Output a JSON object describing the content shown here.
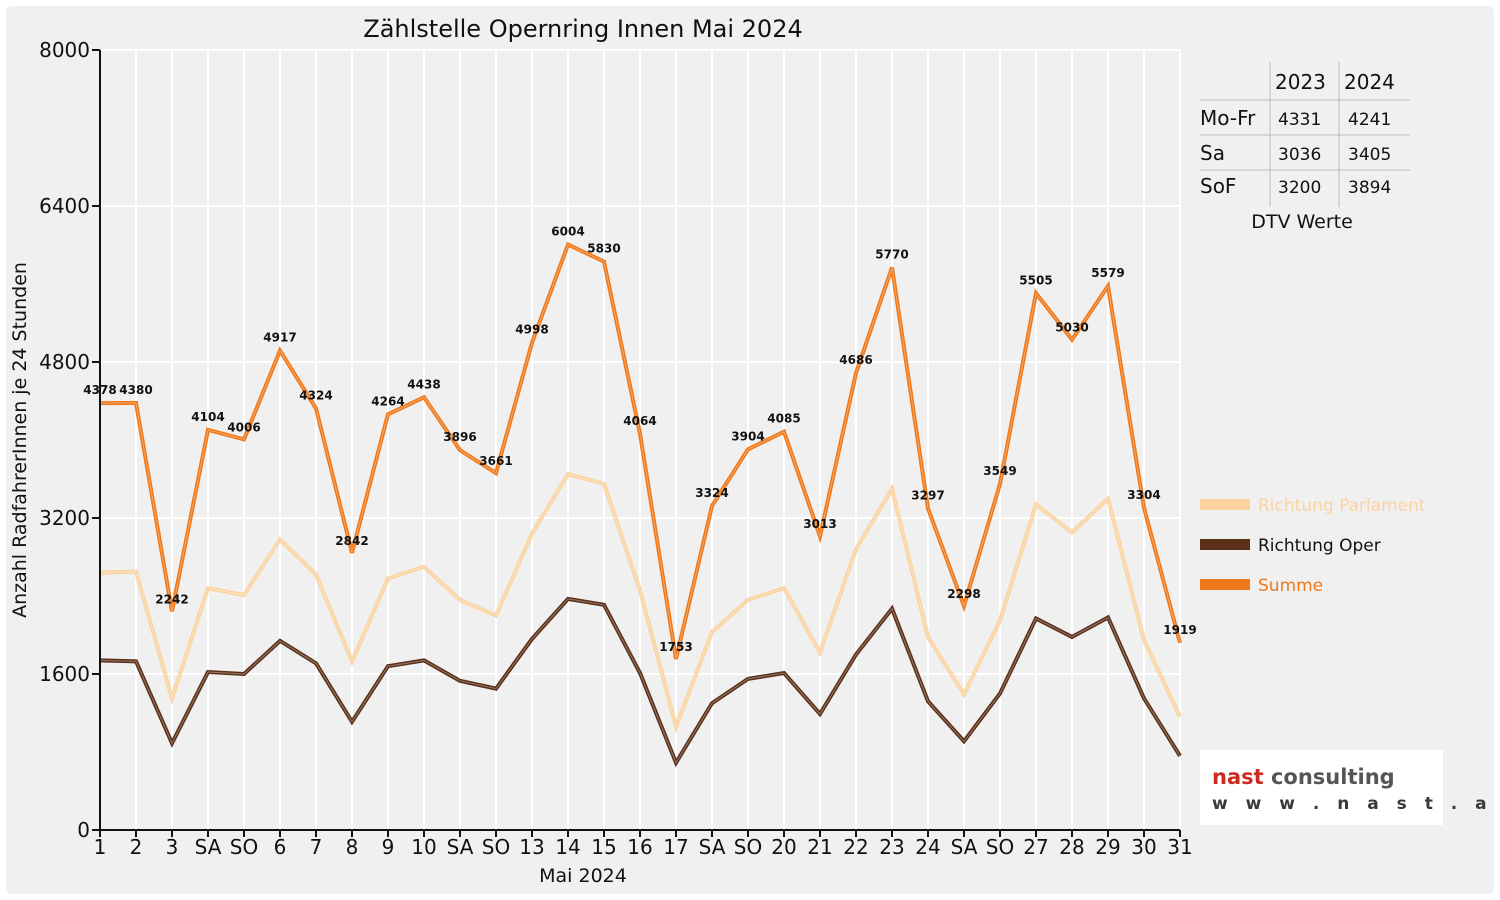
{
  "chart_data": {
    "type": "line",
    "title": "Zählstelle Opernring Innen Mai 2024",
    "xlabel": "Mai 2024",
    "ylabel": "Anzahl RadfahrerInnen je 24 Stunden",
    "ylim": [
      0,
      8000
    ],
    "yticks": [
      0,
      1600,
      3200,
      4800,
      6400,
      8000
    ],
    "categories": [
      "1",
      "2",
      "3",
      "SA",
      "SO",
      "6",
      "7",
      "8",
      "9",
      "10",
      "SA",
      "SO",
      "13",
      "14",
      "15",
      "16",
      "17",
      "SA",
      "SO",
      "20",
      "21",
      "22",
      "23",
      "24",
      "SA",
      "SO",
      "27",
      "28",
      "29",
      "30",
      "31"
    ],
    "holiday_categories": [
      0,
      4,
      8,
      11,
      18,
      19,
      25,
      29
    ],
    "series": [
      {
        "name": "Richtung Parlament",
        "color": "#fbd3a0",
        "values": [
          2640,
          2650,
          1350,
          2480,
          2410,
          2980,
          2620,
          1730,
          2580,
          2700,
          2360,
          2200,
          3040,
          3650,
          3550,
          2460,
          1060,
          2030,
          2360,
          2480,
          1820,
          2880,
          3500,
          1980,
          1390,
          2150,
          3340,
          3050,
          3400,
          1950,
          1160
        ]
      },
      {
        "name": "Richtung Oper",
        "color": "#5b3018",
        "values": [
          1740,
          1730,
          890,
          1620,
          1600,
          1940,
          1710,
          1110,
          1680,
          1740,
          1530,
          1450,
          1960,
          2370,
          2310,
          1610,
          690,
          1300,
          1550,
          1610,
          1190,
          1800,
          2270,
          1320,
          910,
          1400,
          2170,
          1980,
          2180,
          1350,
          760
        ]
      },
      {
        "name": "Summe",
        "color": "#f07818",
        "values": [
          4378,
          4380,
          2242,
          4104,
          4006,
          4917,
          4324,
          2842,
          4264,
          4438,
          3896,
          3661,
          4998,
          6004,
          5830,
          4064,
          1753,
          3324,
          3904,
          4085,
          3013,
          4686,
          5770,
          3297,
          2298,
          3549,
          5505,
          5030,
          5579,
          3304,
          1919
        ]
      }
    ],
    "data_labels": [
      "4378",
      "4380",
      "2242",
      "4104",
      "4006",
      "4917",
      "4324",
      "2842",
      "4264",
      "4438",
      "3896",
      "3661",
      "4998",
      "6004",
      "5830",
      "4064",
      "1753",
      "3324",
      "3904",
      "4085",
      "3013",
      "4686",
      "5770",
      "3297",
      "2298",
      "3549",
      "5505",
      "5030",
      "5579",
      "3304",
      "1919"
    ],
    "grid": true,
    "legend_position": "right",
    "colors": {
      "holiday": "#e8000b",
      "grid": "#ffffff",
      "background": "#f0f0f0"
    }
  },
  "dtv_table": {
    "caption": "DTV Werte",
    "columns": [
      "2023",
      "2024"
    ],
    "rows": [
      {
        "label": "Mo-Fr",
        "v2023": "4331",
        "v2024": "4241"
      },
      {
        "label": "Sa",
        "v2023": "3036",
        "v2024": "3405"
      },
      {
        "label": "SoF",
        "v2023": "3200",
        "v2024": "3894"
      }
    ]
  },
  "logo": {
    "line1": "nast consulting",
    "line2": "www.nast.at"
  }
}
